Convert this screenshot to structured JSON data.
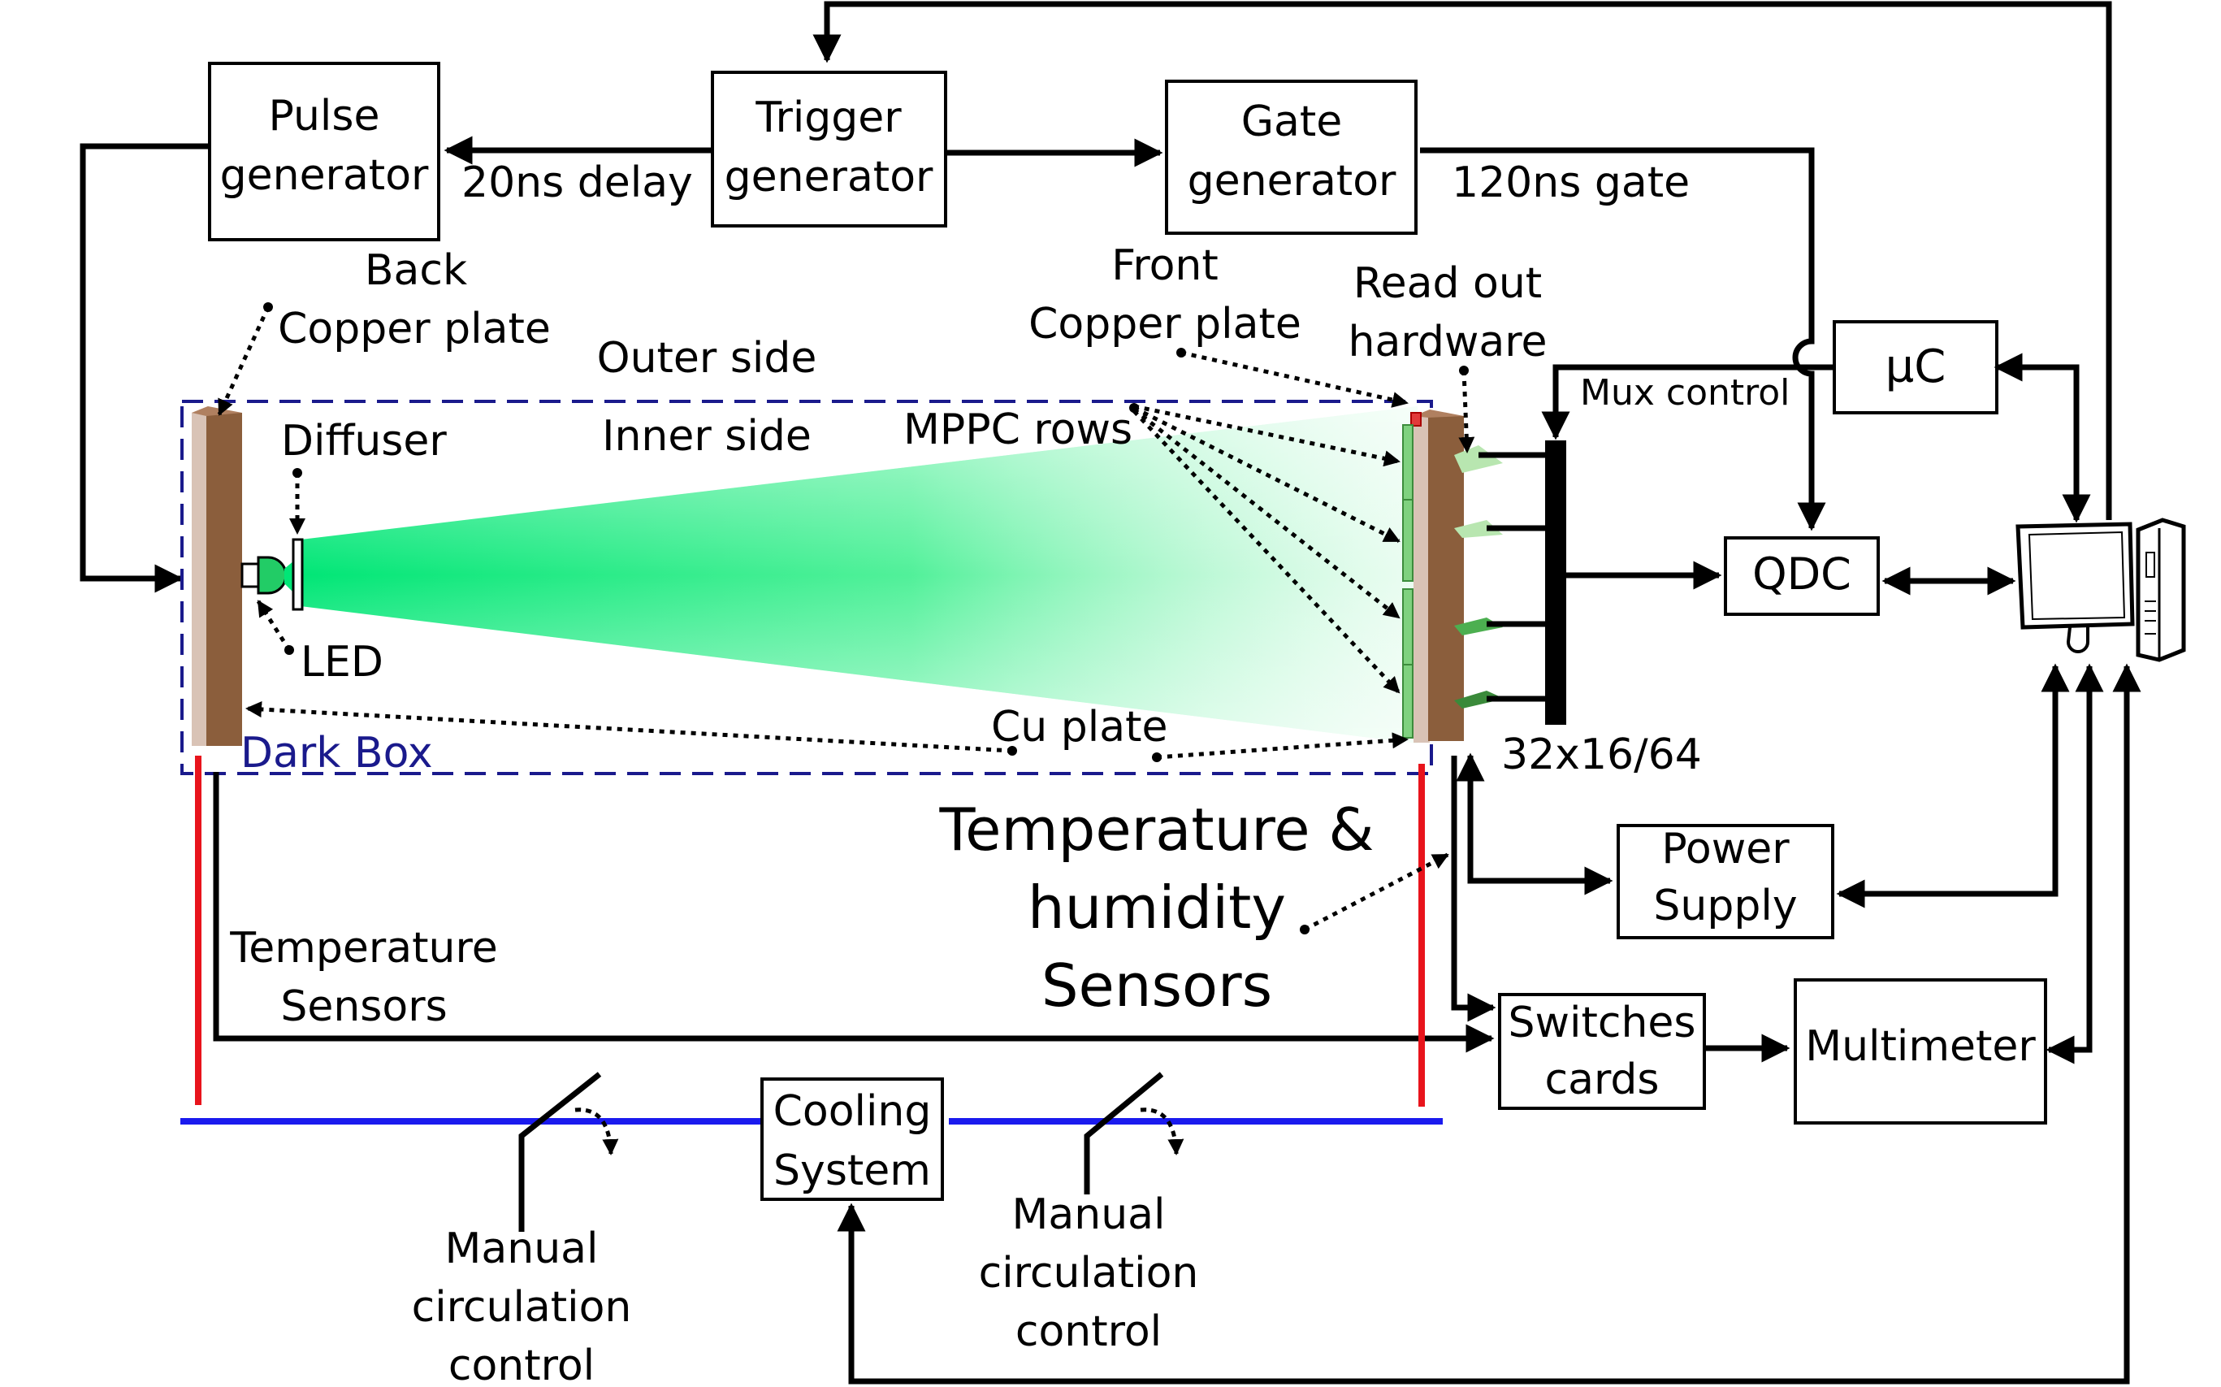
{
  "boxes": {
    "pulse_generator": [
      "Pulse",
      "generator"
    ],
    "trigger_generator": [
      "Trigger",
      "generator"
    ],
    "gate_generator": [
      "Gate",
      "generator"
    ],
    "uc": "µC",
    "qdc": "QDC",
    "power_supply": [
      "Power",
      "Supply"
    ],
    "switches_cards": [
      "Switches",
      "cards"
    ],
    "multimeter": "Multimeter",
    "cooling_system": [
      "Cooling",
      "System"
    ]
  },
  "labels": {
    "delay": "20ns delay",
    "gate": "120ns gate",
    "back_copper_plate": [
      "Back",
      "Copper plate"
    ],
    "front_copper_plate": [
      "Front",
      "Copper plate"
    ],
    "read_out_hardware": [
      "Read out",
      "hardware"
    ],
    "mux_control": "Mux control",
    "outer_side": "Outer side",
    "inner_side": "Inner side",
    "diffuser": "Diffuser",
    "mppc_rows": "MPPC rows",
    "led": "LED",
    "cu_plate": "Cu plate",
    "dark_box": "Dark Box",
    "channels": "32x16/64",
    "temp_humidity_sensors": [
      "Temperature &",
      "humidity",
      "Sensors"
    ],
    "temperature_sensors": [
      "Temperature",
      "Sensors"
    ],
    "manual_circulation_left": [
      "Manual",
      "circulation",
      "control"
    ],
    "manual_circulation_right": [
      "Manual",
      "circulation",
      "control"
    ]
  },
  "colors": {
    "dark_box": "#1a1a8c",
    "copper": "#8b5e3c",
    "beam": "#00e676",
    "hot_line": "#e8141c",
    "cold_line": "#1a1aee",
    "mppc_board": "#7fd17f"
  },
  "icons": [
    "computer-icon"
  ]
}
